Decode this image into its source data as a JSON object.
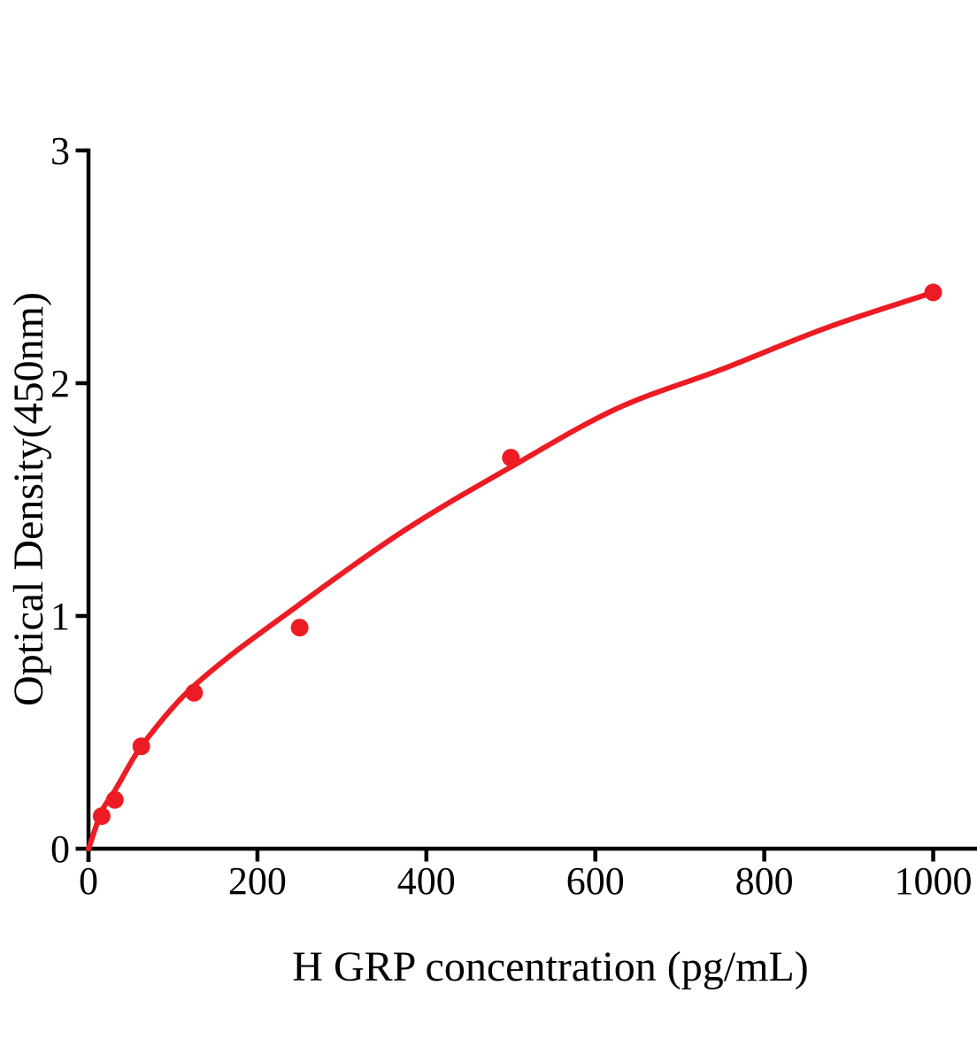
{
  "chart_data": {
    "type": "scatter",
    "title": "",
    "xlabel": "H GRP concentration (pg/mL)",
    "ylabel": "Optical Density(450nm)",
    "xlim": [
      0,
      1052
    ],
    "ylim": [
      0,
      3
    ],
    "x_ticks": [
      "0",
      "200",
      "400",
      "600",
      "800",
      "1000"
    ],
    "x_tick_values": [
      0,
      200,
      400,
      600,
      800,
      1000
    ],
    "y_ticks": [
      "0",
      "1",
      "2",
      "3"
    ],
    "y_tick_values": [
      0,
      1,
      2,
      3
    ],
    "grid": "off",
    "legend": "none",
    "axis_color": "#000000",
    "point_color": "#ED1C24",
    "curve_color": "#ED1C24",
    "background_color": "#FFFFFF",
    "points": [
      {
        "x": 15.6,
        "y": 0.14
      },
      {
        "x": 31.2,
        "y": 0.21
      },
      {
        "x": 62.5,
        "y": 0.44
      },
      {
        "x": 125,
        "y": 0.67
      },
      {
        "x": 250,
        "y": 0.95
      },
      {
        "x": 500,
        "y": 1.68
      },
      {
        "x": 1000,
        "y": 2.39
      }
    ],
    "fit_curve": [
      {
        "x": 0,
        "y": 0.0
      },
      {
        "x": 15.6,
        "y": 0.16
      },
      {
        "x": 31.2,
        "y": 0.25
      },
      {
        "x": 62.5,
        "y": 0.44
      },
      {
        "x": 125,
        "y": 0.7
      },
      {
        "x": 250,
        "y": 1.05
      },
      {
        "x": 375,
        "y": 1.37
      },
      {
        "x": 500,
        "y": 1.64
      },
      {
        "x": 625,
        "y": 1.89
      },
      {
        "x": 750,
        "y": 2.06
      },
      {
        "x": 875,
        "y": 2.24
      },
      {
        "x": 1000,
        "y": 2.39
      }
    ]
  }
}
